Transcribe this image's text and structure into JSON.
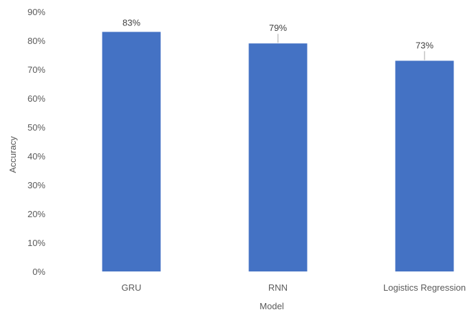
{
  "chart_data": {
    "type": "bar",
    "title": "",
    "xlabel": "Model",
    "ylabel": "Accuracy",
    "categories": [
      "GRU",
      "RNN",
      "Logistics Regression"
    ],
    "values": [
      83,
      79,
      73
    ],
    "data_labels": [
      "83%",
      "79%",
      "73%"
    ],
    "ylim": [
      0,
      90
    ],
    "yticks": [
      0,
      10,
      20,
      30,
      40,
      50,
      60,
      70,
      80,
      90
    ],
    "ytick_labels": [
      "0%",
      "10%",
      "20%",
      "30%",
      "40%",
      "50%",
      "60%",
      "70%",
      "80%",
      "90%"
    ],
    "bar_color": "#4472C4",
    "leader_line_color": "#A6A6A6",
    "grid": false,
    "legend": "none"
  }
}
